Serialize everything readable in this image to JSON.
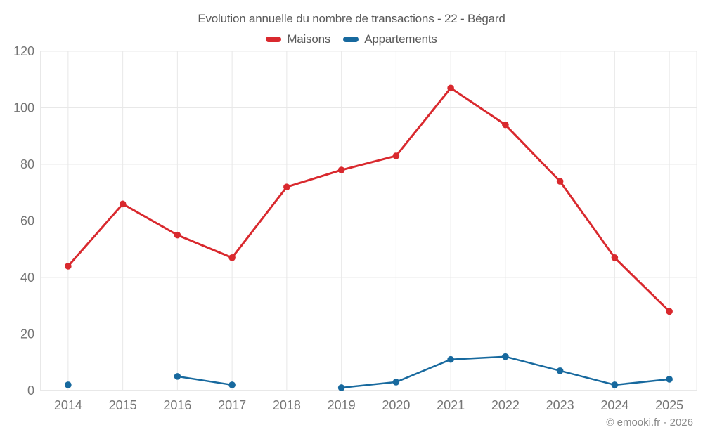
{
  "chart": {
    "title": "Evolution annuelle du nombre de transactions - 22 - Bégard"
  },
  "footer": {
    "attribution": "© emooki.fr - 2026"
  },
  "chart_data": {
    "type": "line",
    "title": "Evolution annuelle du nombre de transactions - 22 - Bégard",
    "categories": [
      "2014",
      "2015",
      "2016",
      "2017",
      "2018",
      "2019",
      "2020",
      "2021",
      "2022",
      "2023",
      "2024",
      "2025"
    ],
    "series": [
      {
        "name": "Maisons",
        "color": "#d9292e",
        "values": [
          44,
          66,
          55,
          47,
          72,
          78,
          83,
          107,
          94,
          74,
          47,
          28
        ]
      },
      {
        "name": "Appartements",
        "color": "#17699e",
        "values": [
          2,
          null,
          5,
          2,
          null,
          1,
          3,
          11,
          12,
          7,
          2,
          4
        ]
      }
    ],
    "xlabel": "",
    "ylabel": "",
    "ylim": [
      0,
      120
    ],
    "y_ticks": [
      0,
      20,
      40,
      60,
      80,
      100,
      120
    ],
    "grid": true,
    "legend_position": "top",
    "grid_color": "#e8e8e8",
    "axis_line_color": "#d2d2d2",
    "tick_label_color": "#757575"
  }
}
